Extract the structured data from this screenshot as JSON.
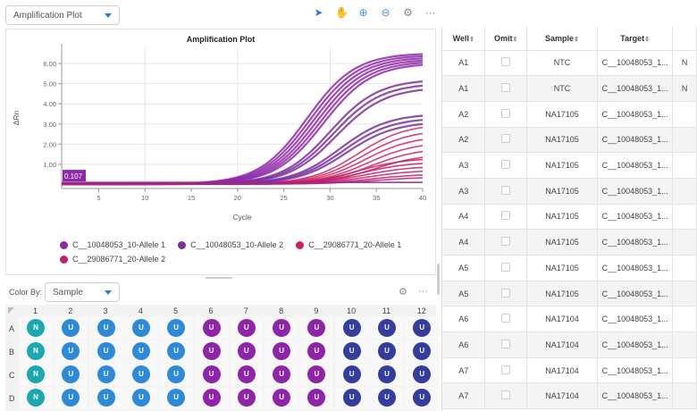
{
  "plot_selector": {
    "value": "Amplification Plot"
  },
  "toolbar": {
    "icons": [
      "pointer-icon",
      "pan-hand-icon",
      "zoom-in-icon",
      "zoom-out-icon",
      "gear-icon",
      "more-icon"
    ],
    "glyphs": [
      "➤",
      "✋",
      "⊕",
      "⊖",
      "⚙",
      "···"
    ]
  },
  "chart_data": {
    "type": "line",
    "title": "Amplification Plot",
    "xlabel": "Cycle",
    "ylabel": "ΔRn",
    "xlim": [
      1,
      40
    ],
    "ylim": [
      -0.2,
      6.8
    ],
    "xticks": [
      5,
      10,
      15,
      20,
      25,
      30,
      35,
      40
    ],
    "yticks": [
      1.0,
      2.0,
      3.0,
      4.0,
      5.0,
      6.0
    ],
    "ytick_labels": [
      "1.00",
      "2.00",
      "3.00",
      "4.00",
      "5.00",
      "6.00"
    ],
    "grid": true,
    "threshold": {
      "value": 0.107,
      "label": "0.107"
    },
    "legend_position": "bottom",
    "series": [
      {
        "name": "C__10048053_10-Allele 1",
        "color": "#8e2aa8",
        "plateaus": [
          6.5,
          6.4,
          6.3,
          6.2,
          6.1,
          6.0
        ],
        "midpoint": 27.5
      },
      {
        "name": "C__10048053_10-Allele 2",
        "color": "#7a2fa0",
        "plateaus": [
          5.2,
          5.0,
          4.8,
          3.5,
          3.3,
          3.1
        ],
        "midpoint": 30
      },
      {
        "name": "C__29086771_20-Allele 1",
        "color": "#d0205f",
        "plateaus": [
          3.0,
          2.7,
          2.4,
          2.1,
          1.8,
          1.5
        ],
        "midpoint": 33
      },
      {
        "name": "C__29086771_20-Allele 2",
        "color": "#c0206a",
        "plateaus": [
          1.3,
          1.1,
          0.9,
          0.7,
          0.5,
          0.35
        ],
        "midpoint": 33
      }
    ]
  },
  "color_by": {
    "label": "Color By:",
    "value": "Sample"
  },
  "plate": {
    "columns": [
      "1",
      "2",
      "3",
      "4",
      "5",
      "6",
      "7",
      "8",
      "9",
      "10",
      "11",
      "12"
    ],
    "rows": [
      "A",
      "B",
      "C",
      "D"
    ],
    "colors": {
      "N": "#1aa9b0",
      "U_blue": "#2d8ad8",
      "U_purple": "#8e24a8",
      "U_navy": "#333d9e"
    },
    "well_letters": [
      "N",
      "U",
      "U",
      "U",
      "U",
      "U",
      "U",
      "U",
      "U",
      "U",
      "U",
      "U"
    ],
    "well_color_keys": [
      "N",
      "U_blue",
      "U_blue",
      "U_blue",
      "U_blue",
      "U_purple",
      "U_purple",
      "U_purple",
      "U_purple",
      "U_navy",
      "U_navy",
      "U_navy"
    ]
  },
  "table": {
    "headers": [
      "Well",
      "Omit",
      "Sample",
      "Target",
      ""
    ],
    "rows": [
      {
        "well": "A1",
        "sample": "NTC",
        "target": "C__10048053_1...",
        "extra": "N"
      },
      {
        "well": "A1",
        "sample": "NTC",
        "target": "C__10048053_1...",
        "extra": "N"
      },
      {
        "well": "A2",
        "sample": "NA17105",
        "target": "C__10048053_1...",
        "extra": ""
      },
      {
        "well": "A2",
        "sample": "NA17105",
        "target": "C__10048053_1...",
        "extra": ""
      },
      {
        "well": "A3",
        "sample": "NA17105",
        "target": "C__10048053_1...",
        "extra": ""
      },
      {
        "well": "A3",
        "sample": "NA17105",
        "target": "C__10048053_1...",
        "extra": ""
      },
      {
        "well": "A4",
        "sample": "NA17105",
        "target": "C__10048053_1...",
        "extra": ""
      },
      {
        "well": "A4",
        "sample": "NA17105",
        "target": "C__10048053_1...",
        "extra": ""
      },
      {
        "well": "A5",
        "sample": "NA17105",
        "target": "C__10048053_1...",
        "extra": ""
      },
      {
        "well": "A5",
        "sample": "NA17105",
        "target": "C__10048053_1...",
        "extra": ""
      },
      {
        "well": "A6",
        "sample": "NA17104",
        "target": "C__10048053_1...",
        "extra": ""
      },
      {
        "well": "A6",
        "sample": "NA17104",
        "target": "C__10048053_1...",
        "extra": ""
      },
      {
        "well": "A7",
        "sample": "NA17104",
        "target": "C__10048053_1...",
        "extra": ""
      },
      {
        "well": "A7",
        "sample": "NA17104",
        "target": "C__10048053_1...",
        "extra": ""
      }
    ]
  }
}
